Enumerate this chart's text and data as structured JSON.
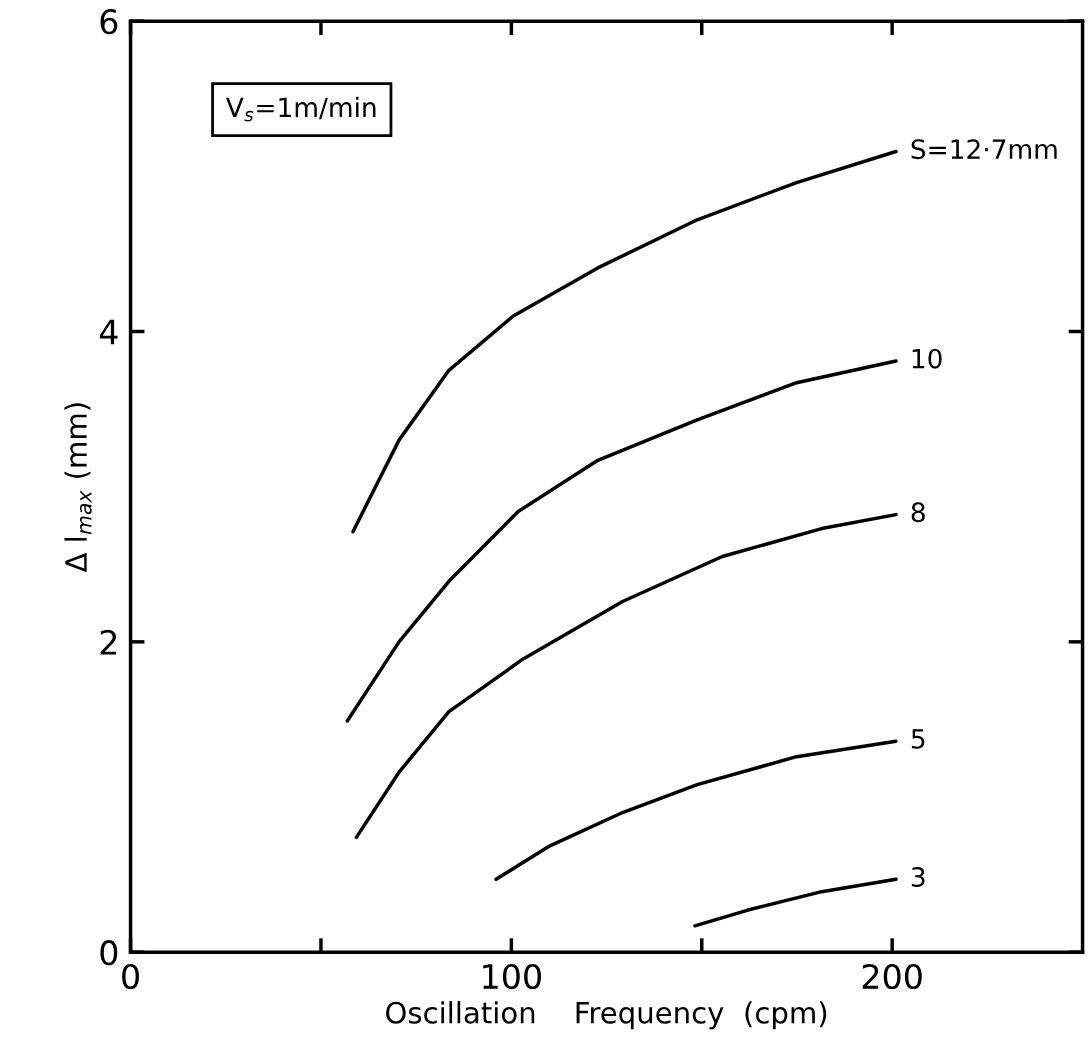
{
  "chart_data": {
    "type": "line",
    "xlabel": "Oscillation    Frequency  (cpm)",
    "ylabel": "Δ l$_{max}$ (mm)",
    "annotations": [
      "V$_{s}$=1m/min"
    ],
    "xlim": [
      0,
      250
    ],
    "xticks": [
      0,
      {
        "value": 50,
        "label": null
      },
      100,
      {
        "value": 150,
        "label": null
      },
      200
    ],
    "ylim": [
      0,
      6
    ],
    "yticks": [
      0,
      2,
      4,
      6
    ],
    "grid": false,
    "legend": false,
    "marker": "none",
    "line_style": "solid",
    "series": [
      {
        "name": "S=12·7mm",
        "color": "#000000",
        "x": [
          58.4,
          70.5,
          83.6,
          100.5,
          122.7,
          148.8,
          174.9,
          201
        ],
        "values": [
          2.71,
          3.3,
          3.75,
          4.1,
          4.41,
          4.72,
          4.96,
          5.16
        ]
      },
      {
        "name": "10",
        "color": "#000000",
        "x": [
          56.9,
          70.5,
          83.6,
          101.8,
          122.7,
          148.8,
          174.9,
          201
        ],
        "values": [
          1.49,
          2.0,
          2.39,
          2.84,
          3.17,
          3.43,
          3.67,
          3.81
        ]
      },
      {
        "name": "8",
        "color": "#000000",
        "x": [
          59.3,
          70.5,
          83.6,
          103.1,
          129.2,
          155.4,
          181.5,
          201
        ],
        "values": [
          0.74,
          1.16,
          1.55,
          1.89,
          2.26,
          2.55,
          2.73,
          2.82
        ]
      },
      {
        "name": "5",
        "color": "#000000",
        "x": [
          96.0,
          109.7,
          129.2,
          148.8,
          174.9,
          201
        ],
        "values": [
          0.47,
          0.68,
          0.9,
          1.08,
          1.26,
          1.36
        ]
      },
      {
        "name": "3",
        "color": "#000000",
        "x": [
          148.2,
          161.9,
          181.5,
          201
        ],
        "values": [
          0.17,
          0.27,
          0.39,
          0.47
        ]
      }
    ]
  }
}
